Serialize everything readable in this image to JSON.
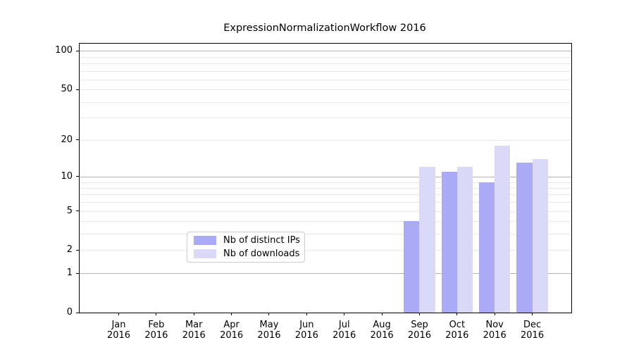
{
  "chart_data": {
    "type": "bar",
    "title": "ExpressionNormalizationWorkflow 2016",
    "year": "2016",
    "categories": [
      "Jan",
      "Feb",
      "Mar",
      "Apr",
      "May",
      "Jun",
      "Jul",
      "Aug",
      "Sep",
      "Oct",
      "Nov",
      "Dec"
    ],
    "series": [
      {
        "name": "Nb of distinct IPs",
        "color": "#aaaaf7",
        "values": [
          0,
          0,
          0,
          0,
          0,
          0,
          0,
          0,
          4,
          11,
          9,
          13
        ]
      },
      {
        "name": "Nb of downloads",
        "color": "#dadaf8",
        "values": [
          0,
          0,
          0,
          0,
          0,
          0,
          0,
          0,
          12,
          12,
          18,
          14
        ]
      }
    ],
    "yticks": [
      0,
      1,
      2,
      5,
      10,
      20,
      50,
      100
    ],
    "scale": "log10(1+y)",
    "ylim": [
      0,
      114
    ],
    "grid_major": [
      1,
      10,
      100
    ],
    "grid_minor": [
      2,
      3,
      4,
      5,
      6,
      7,
      8,
      9,
      20,
      30,
      40,
      50,
      60,
      70,
      80,
      90
    ],
    "grid": "on",
    "legend_position": "bottom-center",
    "xlabel": "",
    "ylabel": ""
  },
  "colors": {
    "axis": "#000000",
    "grid_major": "#b4b4b4",
    "grid_minor": "#e9e9e9",
    "background": "#ffffff",
    "legend_border": "#cccccc"
  }
}
